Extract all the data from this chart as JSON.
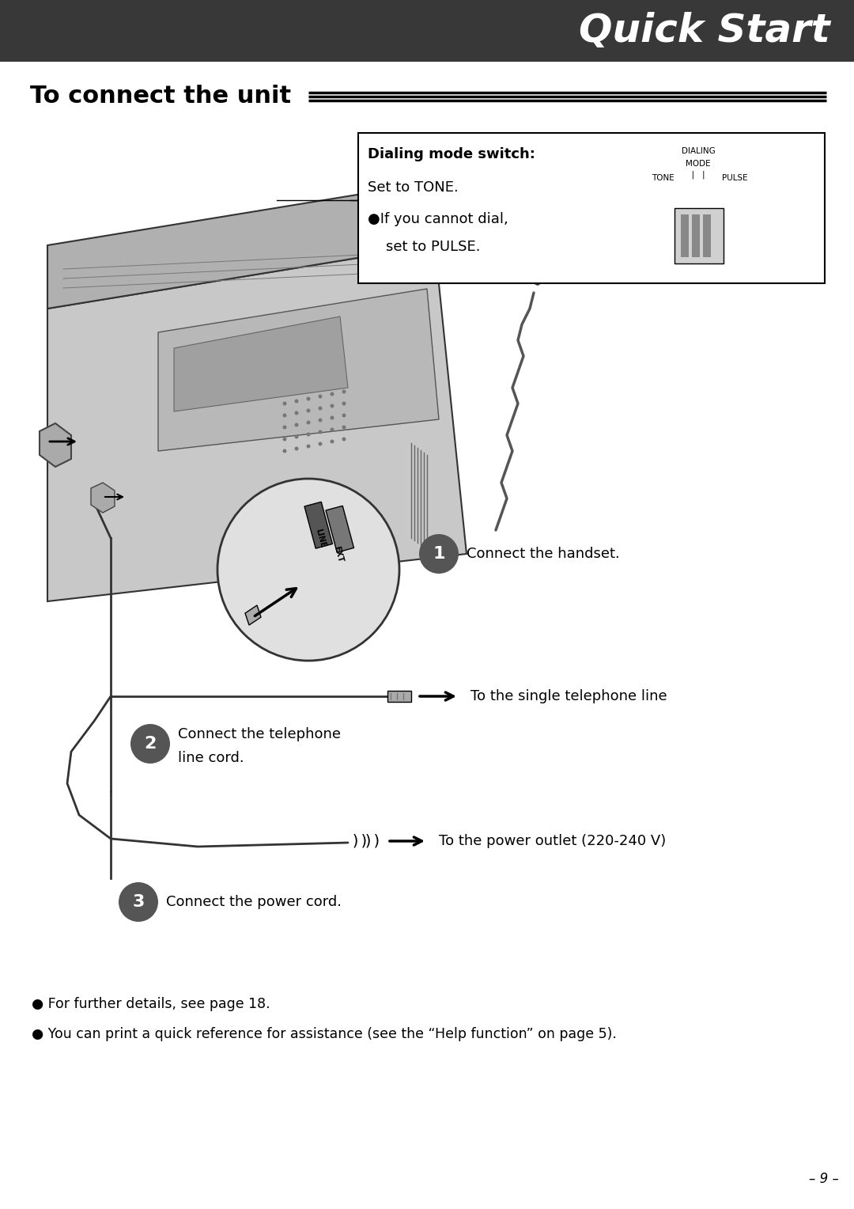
{
  "header_color": "#383838",
  "header_text": "Quick Start",
  "header_text_color": "#ffffff",
  "bg_color": "#ffffff",
  "title": "To connect the unit",
  "bullet1": "For further details, see page 18.",
  "bullet2": "You can print a quick reference for assistance (see the “Help function” on page 5).",
  "page_num": "– 9 –",
  "dialing_box_title": "Dialing mode switch:",
  "dialing_line1": "Set to TONE.",
  "dialing_bullet": "●If you cannot dial,",
  "dialing_line2": "    set to PULSE.",
  "dialing_label1": "DIALING",
  "dialing_label2": "MODE",
  "dialing_label3": "TONE",
  "dialing_label4": "PULSE",
  "conn1_label": "Connect the handset.",
  "conn2_label1": "Connect the telephone",
  "conn2_label2": "line cord.",
  "conn3_label": "Connect the power cord.",
  "arrow1": "To the single telephone line",
  "arrow2": "To the power outlet (220-240 V)"
}
